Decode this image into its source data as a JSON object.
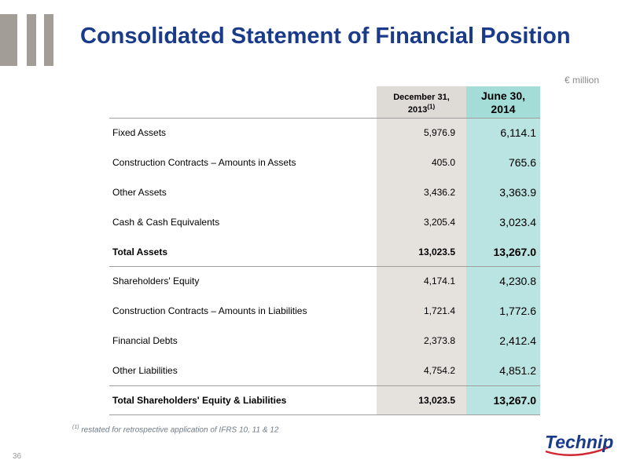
{
  "title": "Consolidated Statement of Financial Position",
  "unit": "€ million",
  "columns": {
    "prev_line1": "December 31,",
    "prev_line2": "2013",
    "prev_note": "(1)",
    "curr_line1": "June 30,",
    "curr_line2": "2014"
  },
  "rows": [
    {
      "label": "Fixed Assets",
      "prev": "5,976.9",
      "curr": "6,114.1"
    },
    {
      "label": "Construction Contracts – Amounts in Assets",
      "prev": "405.0",
      "curr": "765.6"
    },
    {
      "label": "Other Assets",
      "prev": "3,436.2",
      "curr": "3,363.9"
    },
    {
      "label": "Cash & Cash Equivalents",
      "prev": "3,205.4",
      "curr": "3,023.4"
    },
    {
      "label": "Total Assets",
      "prev": "13,023.5",
      "curr": "13,267.0"
    },
    {
      "label": "Shareholders' Equity",
      "prev": "4,174.1",
      "curr": "4,230.8"
    },
    {
      "label": "Construction Contracts – Amounts in Liabilities",
      "prev": "1,721.4",
      "curr": "1,772.6"
    },
    {
      "label": "Financial Debts",
      "prev": "2,373.8",
      "curr": "2,412.4"
    },
    {
      "label": "Other Liabilities",
      "prev": "4,754.2",
      "curr": "4,851.2"
    },
    {
      "label": "Total Shareholders' Equity & Liabilities",
      "prev": "13,023.5",
      "curr": "13,267.0"
    }
  ],
  "footnote": {
    "marker": "(1)",
    "text": " restated for retrospective application of IFRS 10, 11 & 12"
  },
  "page_number": "36",
  "logo_text": "Technip",
  "colors": {
    "title": "#1a3a8a",
    "prev_column": "#e5e2de",
    "current_column": "#b9e4e1",
    "logo_blue": "#1a3a8a",
    "logo_red": "#d22630"
  }
}
